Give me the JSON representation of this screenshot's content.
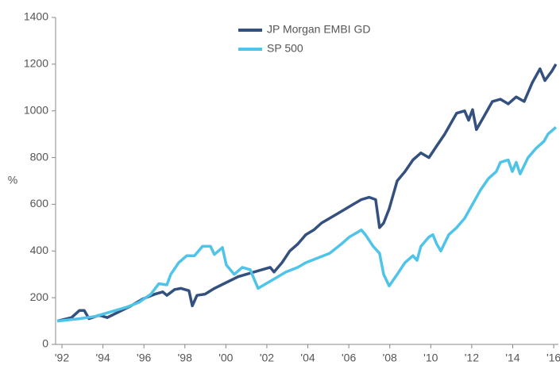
{
  "chart_data": {
    "type": "line",
    "ylabel": "%",
    "xlim": [
      1991.69,
      2016.23
    ],
    "ylim": [
      0,
      1400
    ],
    "yticks": [
      0,
      200,
      400,
      600,
      800,
      1000,
      1200,
      1400
    ],
    "xticks": [
      {
        "value": 1992,
        "label": "'92"
      },
      {
        "value": 1994,
        "label": "'94"
      },
      {
        "value": 1996,
        "label": "'96"
      },
      {
        "value": 1998,
        "label": "'98"
      },
      {
        "value": 2000,
        "label": "'00"
      },
      {
        "value": 2002,
        "label": "'02"
      },
      {
        "value": 2004,
        "label": "'04"
      },
      {
        "value": 2006,
        "label": "'06"
      },
      {
        "value": 2008,
        "label": "'08"
      },
      {
        "value": 2010,
        "label": "'10"
      },
      {
        "value": 2012,
        "label": "'12"
      },
      {
        "value": 2014,
        "label": "'14"
      },
      {
        "value": 2016,
        "label": "'16"
      }
    ],
    "legend": "top",
    "series": [
      {
        "name": "JP Morgan EMBI GD",
        "color": "#34507f",
        "x": [
          1991.77,
          1992.47,
          1992.85,
          1993.09,
          1993.32,
          1993.82,
          1994.21,
          1994.79,
          1995.37,
          1995.95,
          1996.53,
          1996.92,
          1997.12,
          1997.5,
          1997.81,
          1998.2,
          1998.36,
          1998.59,
          1998.98,
          1999.44,
          2000.02,
          2000.6,
          2001.19,
          2001.77,
          2002.16,
          2002.35,
          2002.74,
          2003.12,
          2003.51,
          2003.9,
          2004.29,
          2004.67,
          2005.06,
          2005.45,
          2005.84,
          2006.22,
          2006.61,
          2007.0,
          2007.31,
          2007.5,
          2007.7,
          2007.97,
          2008.36,
          2008.74,
          2009.13,
          2009.52,
          2009.91,
          2010.29,
          2010.68,
          2011.26,
          2011.65,
          2011.85,
          2012.04,
          2012.23,
          2012.62,
          2013.01,
          2013.4,
          2013.78,
          2014.17,
          2014.56,
          2014.95,
          2015.33,
          2015.57,
          2015.91,
          2016.11
        ],
        "values": [
          100,
          115,
          145,
          145,
          110,
          125,
          115,
          140,
          165,
          195,
          215,
          225,
          210,
          235,
          240,
          230,
          165,
          210,
          215,
          240,
          265,
          290,
          305,
          320,
          330,
          310,
          350,
          400,
          430,
          470,
          490,
          520,
          540,
          560,
          580,
          600,
          620,
          630,
          620,
          500,
          520,
          580,
          700,
          740,
          790,
          820,
          800,
          850,
          900,
          990,
          1000,
          960,
          1005,
          920,
          980,
          1040,
          1050,
          1030,
          1060,
          1040,
          1120,
          1180,
          1130,
          1170,
          1200
        ]
      },
      {
        "name": "SP 500",
        "color": "#4fc4e8",
        "x": [
          1991.77,
          1992.85,
          1993.63,
          1994.4,
          1995.18,
          1995.76,
          1996.34,
          1996.73,
          1997.12,
          1997.31,
          1997.7,
          1998.09,
          1998.47,
          1998.86,
          1999.25,
          1999.44,
          1999.83,
          2000.02,
          2000.41,
          2000.8,
          2001.19,
          2001.38,
          2001.57,
          2001.96,
          2002.35,
          2002.93,
          2003.51,
          2003.9,
          2004.48,
          2005.06,
          2005.64,
          2006.03,
          2006.42,
          2006.61,
          2006.81,
          2007.19,
          2007.5,
          2007.7,
          2007.97,
          2008.36,
          2008.74,
          2009.13,
          2009.33,
          2009.52,
          2009.91,
          2010.1,
          2010.29,
          2010.49,
          2010.88,
          2011.26,
          2011.65,
          2012.04,
          2012.42,
          2012.81,
          2013.2,
          2013.4,
          2013.78,
          2013.98,
          2014.17,
          2014.36,
          2014.75,
          2015.14,
          2015.53,
          2015.72,
          2016.11
        ],
        "values": [
          100,
          110,
          120,
          140,
          160,
          180,
          215,
          260,
          255,
          300,
          350,
          380,
          380,
          420,
          420,
          385,
          415,
          340,
          300,
          330,
          320,
          280,
          240,
          260,
          280,
          310,
          330,
          350,
          370,
          390,
          430,
          460,
          480,
          490,
          470,
          420,
          390,
          300,
          250,
          300,
          350,
          380,
          360,
          420,
          460,
          470,
          430,
          400,
          470,
          500,
          540,
          600,
          660,
          710,
          740,
          780,
          790,
          740,
          780,
          730,
          800,
          840,
          870,
          900,
          930
        ]
      }
    ]
  }
}
